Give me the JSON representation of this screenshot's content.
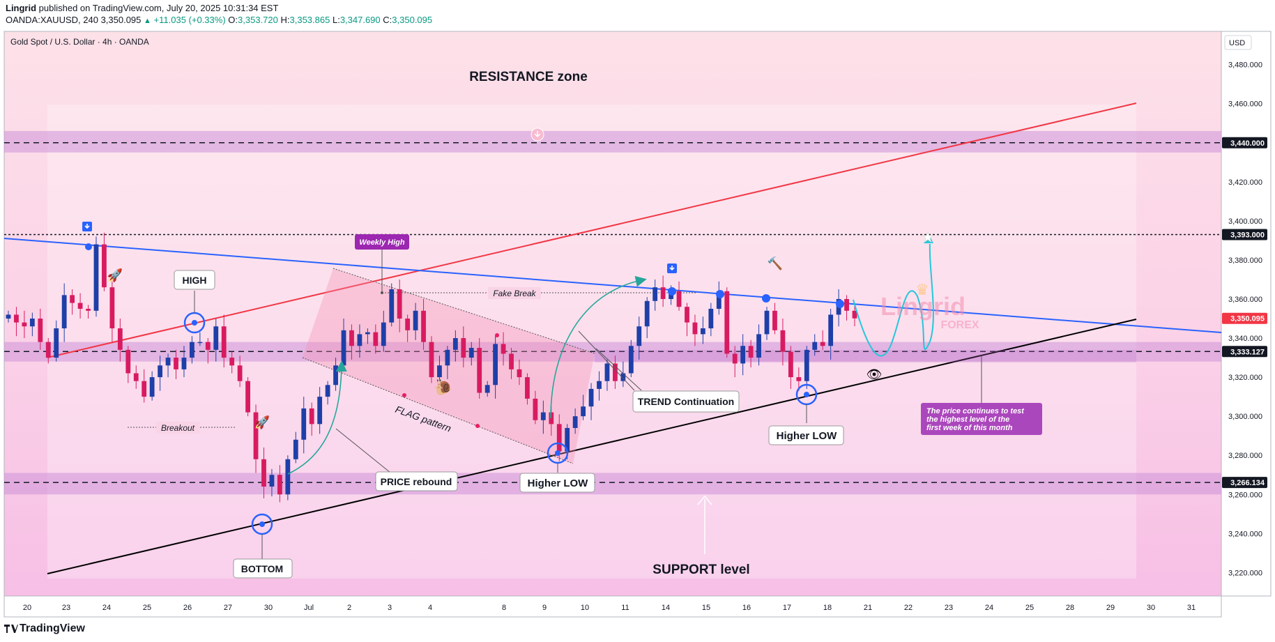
{
  "header": {
    "author": "Lingrid",
    "published": " published on TradingView.com, July 20, 2025 10:31:34 EST",
    "symbol": "OANDA:XAUUSD, 240",
    "last": "3,350.095",
    "change": "+11.035 (+0.33%)",
    "o_label": "O:",
    "o": "3,353.720",
    "h_label": "H:",
    "h": "3,353.865",
    "l_label": "L:",
    "l": "3,347.690",
    "c_label": "C:",
    "c": "3,350.095"
  },
  "legend_title": "Gold Spot / U.S. Dollar · 4h · OANDA",
  "currency": "USD",
  "footer": {
    "brand": "TradingView"
  },
  "colors": {
    "resistance_line": "#f23645",
    "trend_line": "#2962ff",
    "support_line": "#000000",
    "zone_fill": "#ce93d8",
    "up_candle": "#1e3fa8",
    "down_candle": "#d81b60",
    "price_tag": "#f23645",
    "level_tag": "#131722",
    "projection": "#26c6da",
    "callout_purple": "#9c27b0"
  },
  "annotations": {
    "resistance_zone": "RESISTANCE zone",
    "support_level": "SUPPORT level",
    "high": "HIGH",
    "bottom": "BOTTOM",
    "breakout": "Breakout",
    "weekly_high": "Weekly High",
    "fake_break": "Fake Break",
    "flag_pattern": "FLAG pattern",
    "price_rebound": "PRICE rebound",
    "higher_low_1": "Higher LOW",
    "higher_low_2": "Higher LOW",
    "trend_continuation": "TREND Continuation",
    "note": "The price continues to test the highest level of the first week of this month",
    "watermark_1": "Lingrid",
    "watermark_2": "FOREX"
  },
  "chart_data": {
    "type": "candlestick",
    "title": "Gold Spot / U.S. Dollar · 4h · OANDA",
    "x_tick_labels": [
      "20",
      "23",
      "24",
      "25",
      "26",
      "27",
      "30",
      "Jul",
      "2",
      "3",
      "4",
      "8",
      "9",
      "10",
      "11",
      "14",
      "15",
      "16",
      "17",
      "18",
      "21",
      "22",
      "23",
      "24",
      "25",
      "28",
      "29",
      "30",
      "31"
    ],
    "y_tick_labels": [
      "3,480.000",
      "3,460.000",
      "3,420.000",
      "3,400.000",
      "3,380.000",
      "3,360.000",
      "3,340.000",
      "3,320.000",
      "3,300.000",
      "3,280.000",
      "3,260.000",
      "3,240.000",
      "3,220.000"
    ],
    "y_ticks": [
      3480,
      3460,
      3420,
      3400,
      3380,
      3360,
      3340,
      3320,
      3300,
      3280,
      3260,
      3240,
      3220
    ],
    "ylim": [
      3208,
      3497
    ],
    "last_price": {
      "value": 3350.095,
      "label": "3,350.095"
    },
    "levels": [
      {
        "value": 3440,
        "label": "3,440.000",
        "zone": [
          3435,
          3446
        ]
      },
      {
        "value": 3393,
        "label": "3,393.000",
        "zone": null
      },
      {
        "value": 3333.127,
        "label": "3,333.127",
        "zone": [
          3328,
          3338
        ]
      },
      {
        "value": 3266.134,
        "label": "3,266.134",
        "zone": [
          3260,
          3271
        ]
      }
    ],
    "closes": [
      3352,
      3348,
      3346,
      3350,
      3338,
      3330,
      3345,
      3362,
      3358,
      3355,
      3354,
      3388,
      3366,
      3345,
      3334,
      3322,
      3318,
      3310,
      3320,
      3326,
      3330,
      3324,
      3330,
      3338,
      3338,
      3334,
      3346,
      3330,
      3326,
      3318,
      3302,
      3278,
      3264,
      3270,
      3260,
      3278,
      3288,
      3304,
      3296,
      3310,
      3316,
      3326,
      3344,
      3336,
      3342,
      3343,
      3336,
      3348,
      3365,
      3350,
      3344,
      3354,
      3338,
      3320,
      3326,
      3334,
      3340,
      3330,
      3335,
      3312,
      3316,
      3337,
      3332,
      3324,
      3320,
      3309,
      3298,
      3302,
      3296,
      3282,
      3294,
      3300,
      3305,
      3314,
      3318,
      3327,
      3318,
      3322,
      3336,
      3346,
      3359,
      3366,
      3360,
      3364,
      3356,
      3348,
      3342,
      3345,
      3355,
      3364,
      3332,
      3327,
      3336,
      3330,
      3342,
      3354,
      3344,
      3333,
      3320,
      3318,
      3334,
      3338,
      3336,
      3352,
      3360,
      3354,
      3350.095
    ]
  }
}
